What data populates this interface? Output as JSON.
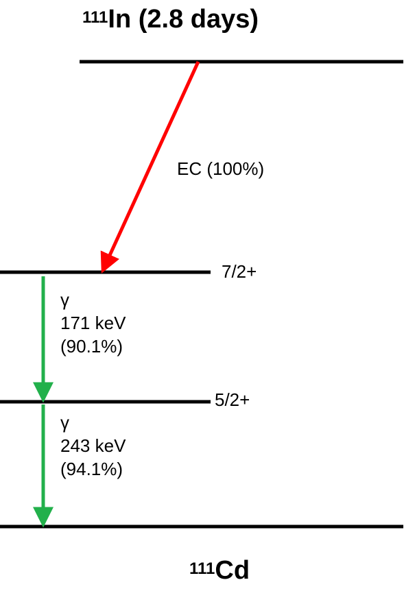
{
  "parent": {
    "mass_number": "111",
    "symbol": "In",
    "half_life": "(2.8 days)"
  },
  "daughter": {
    "mass_number": "111",
    "symbol": "Cd"
  },
  "decay": {
    "label": "EC (100%)",
    "color": "#ff0000"
  },
  "levels": [
    {
      "spin": "7/2+"
    },
    {
      "spin": "5/2+"
    }
  ],
  "gammas": [
    {
      "symbol": "γ",
      "energy": "171 keV",
      "intensity": "(90.1%)",
      "color": "#22b04b"
    },
    {
      "symbol": "γ",
      "energy": "243 keV",
      "intensity": "(94.1%)",
      "color": "#22b04b"
    }
  ]
}
